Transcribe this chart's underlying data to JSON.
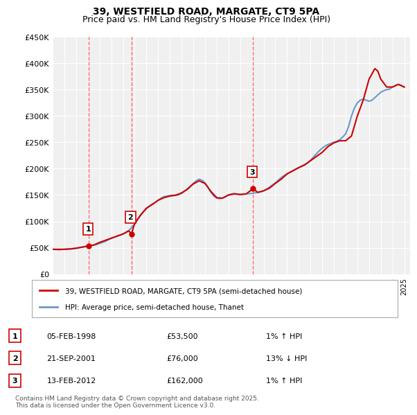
{
  "title_line1": "39, WESTFIELD ROAD, MARGATE, CT9 5PA",
  "title_line2": "Price paid vs. HM Land Registry's House Price Index (HPI)",
  "ylabel": "",
  "xlabel": "",
  "ylim": [
    0,
    450000
  ],
  "yticks": [
    0,
    50000,
    100000,
    150000,
    200000,
    250000,
    300000,
    350000,
    400000,
    450000
  ],
  "ytick_labels": [
    "£0",
    "£50K",
    "£100K",
    "£150K",
    "£200K",
    "£250K",
    "£300K",
    "£350K",
    "£400K",
    "£450K"
  ],
  "background_color": "#ffffff",
  "plot_bg_color": "#f0f0f0",
  "grid_color": "#ffffff",
  "hpi_color": "#6699cc",
  "price_color": "#cc0000",
  "purchase_marker_color": "#cc0000",
  "dashed_line_color": "#ff4444",
  "purchases": [
    {
      "date": 1998.09,
      "price": 53500,
      "label": "1",
      "hpi_diff": "1% ↑ HPI",
      "date_str": "05-FEB-1998"
    },
    {
      "date": 2001.72,
      "price": 76000,
      "label": "2",
      "hpi_diff": "13% ↓ HPI",
      "date_str": "21-SEP-2001"
    },
    {
      "date": 2012.11,
      "price": 162000,
      "label": "3",
      "hpi_diff": "1% ↑ HPI",
      "date_str": "13-FEB-2012"
    }
  ],
  "legend_label_price": "39, WESTFIELD ROAD, MARGATE, CT9 5PA (semi-detached house)",
  "legend_label_hpi": "HPI: Average price, semi-detached house, Thanet",
  "footnote": "Contains HM Land Registry data © Crown copyright and database right 2025.\nThis data is licensed under the Open Government Licence v3.0.",
  "hpi_data": {
    "years": [
      1995,
      1995.25,
      1995.5,
      1995.75,
      1996,
      1996.25,
      1996.5,
      1996.75,
      1997,
      1997.25,
      1997.5,
      1997.75,
      1998,
      1998.25,
      1998.5,
      1998.75,
      1999,
      1999.25,
      1999.5,
      1999.75,
      2000,
      2000.25,
      2000.5,
      2000.75,
      2001,
      2001.25,
      2001.5,
      2001.75,
      2002,
      2002.25,
      2002.5,
      2002.75,
      2003,
      2003.25,
      2003.5,
      2003.75,
      2004,
      2004.25,
      2004.5,
      2004.75,
      2005,
      2005.25,
      2005.5,
      2005.75,
      2006,
      2006.25,
      2006.5,
      2006.75,
      2007,
      2007.25,
      2007.5,
      2007.75,
      2008,
      2008.25,
      2008.5,
      2008.75,
      2009,
      2009.25,
      2009.5,
      2009.75,
      2010,
      2010.25,
      2010.5,
      2010.75,
      2011,
      2011.25,
      2011.5,
      2011.75,
      2012,
      2012.25,
      2012.5,
      2012.75,
      2013,
      2013.25,
      2013.5,
      2013.75,
      2014,
      2014.25,
      2014.5,
      2014.75,
      2015,
      2015.25,
      2015.5,
      2015.75,
      2016,
      2016.25,
      2016.5,
      2016.75,
      2017,
      2017.25,
      2017.5,
      2017.75,
      2018,
      2018.25,
      2018.5,
      2018.75,
      2019,
      2019.25,
      2019.5,
      2019.75,
      2020,
      2020.25,
      2020.5,
      2020.75,
      2021,
      2021.25,
      2021.5,
      2021.75,
      2022,
      2022.25,
      2022.5,
      2022.75,
      2023,
      2023.25,
      2023.5,
      2023.75,
      2024,
      2024.25,
      2024.5,
      2024.75,
      2025
    ],
    "values": [
      47000,
      46500,
      46000,
      46500,
      47000,
      47500,
      48000,
      48500,
      49000,
      50000,
      51000,
      52000,
      53000,
      54000,
      55000,
      56000,
      58000,
      60000,
      62000,
      65000,
      68000,
      70000,
      72000,
      74000,
      76000,
      79000,
      83000,
      88000,
      95000,
      103000,
      111000,
      118000,
      124000,
      129000,
      133000,
      136000,
      140000,
      144000,
      147000,
      148000,
      149000,
      149500,
      150000,
      150500,
      153000,
      157000,
      162000,
      167000,
      172000,
      177000,
      180000,
      178000,
      173000,
      165000,
      155000,
      148000,
      144000,
      143000,
      144000,
      147000,
      150000,
      152000,
      153000,
      152000,
      151000,
      151500,
      152000,
      152500,
      153000,
      154000,
      155000,
      156000,
      158000,
      161000,
      165000,
      169000,
      173000,
      178000,
      183000,
      187000,
      190000,
      193000,
      196000,
      199000,
      202000,
      205000,
      208000,
      211000,
      216000,
      222000,
      228000,
      234000,
      239000,
      243000,
      246000,
      248000,
      250000,
      252000,
      255000,
      260000,
      266000,
      280000,
      300000,
      315000,
      325000,
      330000,
      332000,
      330000,
      328000,
      330000,
      335000,
      340000,
      345000,
      348000,
      350000,
      351000,
      355000,
      358000,
      360000,
      358000,
      355000
    ]
  },
  "price_data": {
    "years": [
      1995,
      1996,
      1996.5,
      1997,
      1997.5,
      1998.09,
      1998.5,
      1999,
      1999.5,
      2000,
      2000.5,
      2001,
      2001.5,
      2001.72,
      2002,
      2002.5,
      2003,
      2003.5,
      2004,
      2004.5,
      2005,
      2005.5,
      2006,
      2006.5,
      2007,
      2007.5,
      2008,
      2008.5,
      2009,
      2009.5,
      2010,
      2010.5,
      2011,
      2011.5,
      2012.11,
      2012.5,
      2013,
      2013.5,
      2014,
      2014.5,
      2015,
      2015.5,
      2016,
      2016.5,
      2017,
      2017.5,
      2018,
      2018.5,
      2019,
      2019.5,
      2020,
      2020.5,
      2021,
      2021.5,
      2022,
      2022.25,
      2022.5,
      2022.75,
      2023,
      2023.5,
      2024,
      2024.5,
      2025
    ],
    "values": [
      47000,
      47000,
      47500,
      49000,
      51000,
      53500,
      55000,
      60000,
      64000,
      68000,
      72000,
      76000,
      82000,
      76000,
      96000,
      112000,
      125000,
      132000,
      140000,
      145000,
      148000,
      149500,
      154000,
      161000,
      171000,
      177000,
      172000,
      157000,
      145000,
      144000,
      150000,
      152000,
      151000,
      152000,
      162000,
      155000,
      158000,
      163000,
      172000,
      180000,
      190000,
      196000,
      202000,
      207000,
      215000,
      223000,
      231000,
      242000,
      249000,
      253000,
      253000,
      262000,
      300000,
      330000,
      370000,
      380000,
      390000,
      385000,
      370000,
      355000,
      355000,
      360000,
      355000
    ]
  }
}
